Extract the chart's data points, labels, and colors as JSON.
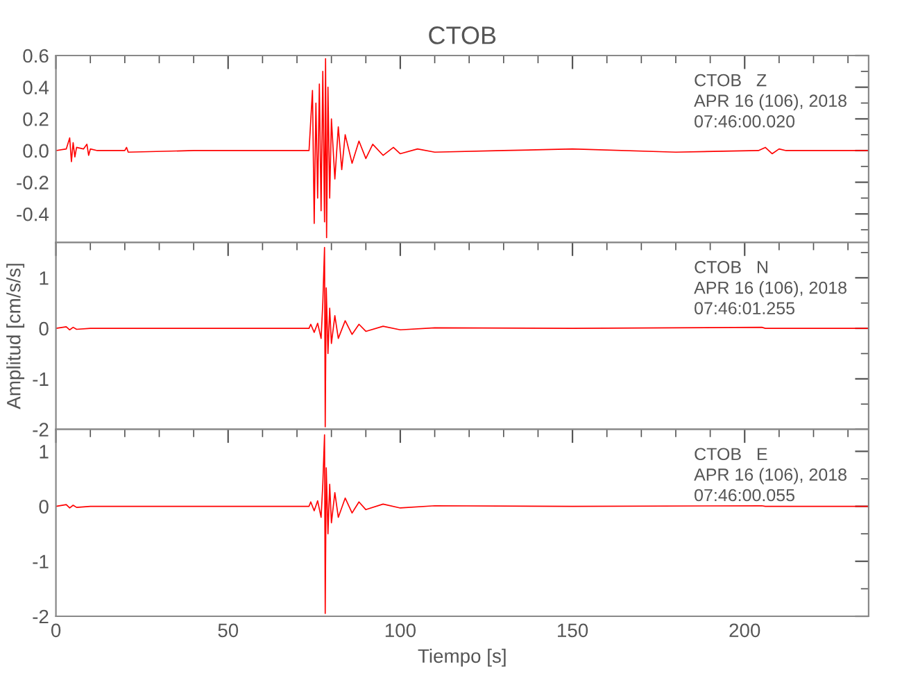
{
  "chart_data": [
    {
      "type": "line",
      "title": "CTOB",
      "xlim": [
        0,
        236
      ],
      "xticks": [
        0,
        50,
        100,
        150,
        200
      ],
      "ylim": [
        -0.58,
        0.6
      ],
      "yticks": [
        {
          "value": -0.4,
          "label": "-0.4"
        },
        {
          "value": -0.2,
          "label": "-0.2"
        },
        {
          "value": 0,
          "label": "0.0"
        },
        {
          "value": 0.2,
          "label": "0.2"
        },
        {
          "value": 0.4,
          "label": "0.4"
        },
        {
          "value": 0.6,
          "label": "0.6"
        }
      ],
      "tick_labels": "y",
      "grid": false,
      "legend": false,
      "annotations": [
        "CTOB   Z",
        "APR 16 (106), 2018",
        "07:46:00.020"
      ],
      "series": [
        {
          "color": "#ff0000",
          "x": [
            0,
            3,
            4,
            4.5,
            5,
            5.5,
            6,
            8,
            9,
            9.5,
            10,
            12,
            20,
            20.5,
            21,
            40,
            60,
            73.5,
            74.5,
            75,
            75.5,
            76,
            76.5,
            77,
            77.5,
            78,
            78.3,
            78.6,
            79,
            79.5,
            80,
            81,
            82,
            83,
            84,
            86,
            88,
            90,
            92,
            95,
            98,
            100,
            105,
            110,
            130,
            150,
            180,
            204,
            206,
            208,
            210,
            212,
            236
          ],
          "values": [
            0,
            0.01,
            0.08,
            -0.07,
            0.05,
            -0.04,
            0.02,
            0.01,
            0.04,
            -0.03,
            0.01,
            0,
            0,
            0.02,
            -0.01,
            0,
            0,
            0,
            0.38,
            -0.46,
            0.3,
            -0.3,
            0.42,
            -0.38,
            0.5,
            -0.45,
            0.58,
            -0.55,
            0.4,
            -0.3,
            0.2,
            -0.18,
            0.15,
            -0.12,
            0.1,
            -0.08,
            0.06,
            -0.05,
            0.04,
            -0.03,
            0.02,
            -0.02,
            0.01,
            -0.01,
            0,
            0.01,
            -0.01,
            0,
            0.02,
            -0.02,
            0.01,
            0,
            0
          ]
        }
      ]
    },
    {
      "type": "line",
      "ylabel": "Amplitud [cm/s/s]",
      "xlim": [
        0,
        236
      ],
      "xticks": [
        0,
        50,
        100,
        150,
        200
      ],
      "ylim": [
        -2,
        1.7
      ],
      "yticks": [
        {
          "value": -2,
          "label": "-2"
        },
        {
          "value": -1,
          "label": "-1"
        },
        0,
        1
      ],
      "tick_labels": "y",
      "grid": false,
      "legend": false,
      "annotations": [
        "CTOB   N",
        "APR 16 (106), 2018",
        "07:46:01.255"
      ],
      "series": [
        {
          "color": "#ff0000",
          "x": [
            0,
            3,
            4,
            5,
            6,
            10,
            20,
            40,
            73.5,
            74,
            75,
            76,
            77,
            77.5,
            78,
            78.2,
            78.5,
            79,
            79.5,
            80,
            81,
            82,
            84,
            86,
            88,
            90,
            95,
            100,
            110,
            150,
            205,
            206,
            236
          ],
          "values": [
            0,
            0.03,
            -0.03,
            0.02,
            -0.02,
            0,
            0,
            0,
            0,
            0.08,
            -0.08,
            0.1,
            -0.2,
            0.5,
            1.6,
            -1.95,
            0.8,
            -0.5,
            0.4,
            -0.3,
            0.25,
            -0.2,
            0.15,
            -0.12,
            0.08,
            -0.06,
            0.04,
            -0.03,
            0.01,
            0,
            0.02,
            0,
            0
          ]
        }
      ]
    },
    {
      "type": "line",
      "xlabel": "Tiempo [s]",
      "xlim": [
        0,
        236
      ],
      "xticks": [
        0,
        50,
        100,
        150,
        200
      ],
      "ylim": [
        -2,
        1.4
      ],
      "yticks": [
        {
          "value": -2,
          "label": "-2"
        },
        {
          "value": -1,
          "label": "-1"
        },
        0,
        1
      ],
      "grid": false,
      "legend": false,
      "annotations": [
        "CTOB   E",
        "APR 16 (106), 2018",
        "07:46:00.055"
      ],
      "series": [
        {
          "color": "#ff0000",
          "x": [
            0,
            3,
            4,
            5,
            6,
            10,
            20,
            40,
            73.5,
            74,
            75,
            76,
            77,
            77.5,
            78,
            78.2,
            78.5,
            79,
            79.5,
            80,
            81,
            82,
            84,
            86,
            88,
            90,
            95,
            100,
            110,
            150,
            205,
            206,
            236
          ],
          "values": [
            0,
            0.03,
            -0.03,
            0.02,
            -0.02,
            0,
            0,
            0,
            0,
            0.08,
            -0.08,
            0.1,
            -0.2,
            0.4,
            1.3,
            -1.95,
            0.7,
            -0.5,
            0.4,
            -0.3,
            0.25,
            -0.2,
            0.15,
            -0.12,
            0.08,
            -0.06,
            0.04,
            -0.03,
            0.01,
            0,
            0.01,
            0,
            0
          ]
        }
      ]
    }
  ]
}
